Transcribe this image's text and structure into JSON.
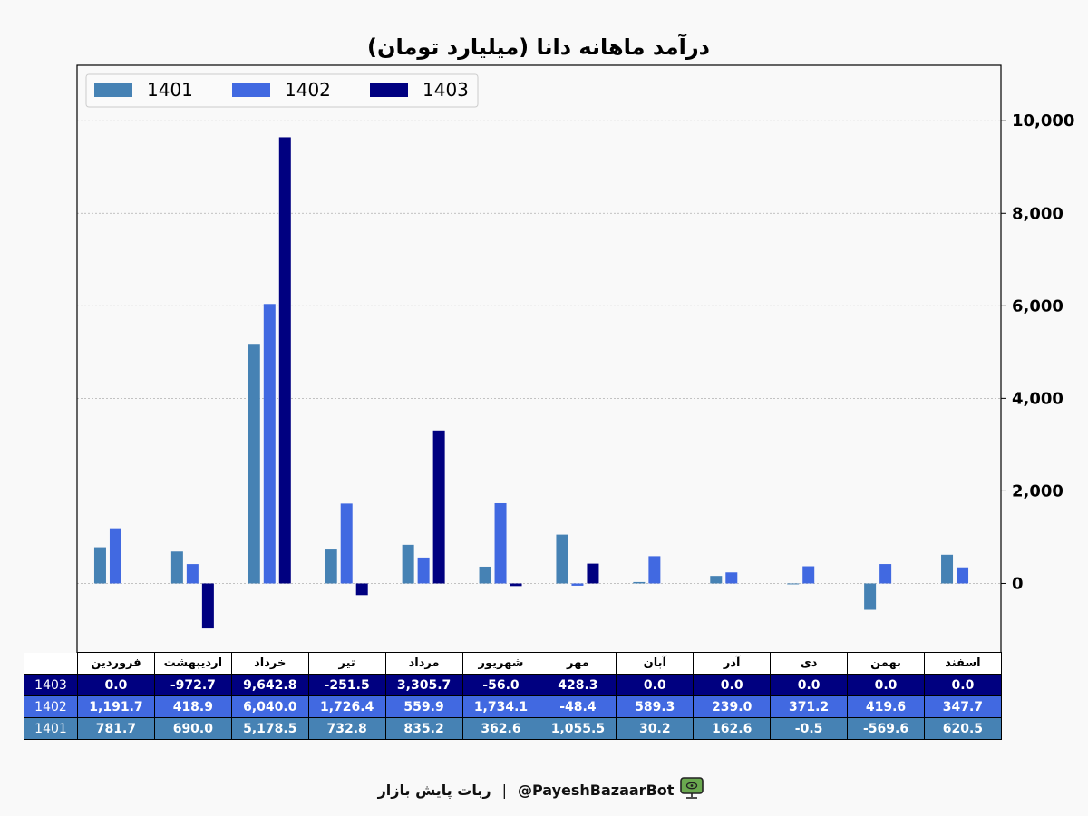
{
  "chart_data": {
    "type": "bar",
    "title": "درآمد ماهانه دانا (میلیارد تومان)",
    "categories": [
      "فروردین",
      "اردیبهشت",
      "خرداد",
      "تیر",
      "مرداد",
      "شهریور",
      "مهر",
      "آبان",
      "آذر",
      "دی",
      "بهمن",
      "اسفند"
    ],
    "series": [
      {
        "name": "1401",
        "color": "#4682b4",
        "values": [
          781.7,
          690.0,
          5178.5,
          732.8,
          835.2,
          362.6,
          1055.5,
          30.2,
          162.6,
          -0.5,
          -569.6,
          620.5
        ],
        "labels": [
          "781.7",
          "690.0",
          "5,178.5",
          "732.8",
          "835.2",
          "362.6",
          "1,055.5",
          "30.2",
          "162.6",
          "-0.5",
          "-569.6",
          "620.5"
        ]
      },
      {
        "name": "1402",
        "color": "#4169e1",
        "values": [
          1191.7,
          418.9,
          6040.0,
          1726.4,
          559.9,
          1734.1,
          -48.4,
          589.3,
          239.0,
          371.2,
          419.6,
          347.7
        ],
        "labels": [
          "1,191.7",
          "418.9",
          "6,040.0",
          "1,726.4",
          "559.9",
          "1,734.1",
          "-48.4",
          "589.3",
          "239.0",
          "371.2",
          "419.6",
          "347.7"
        ]
      },
      {
        "name": "1403",
        "color": "#000080",
        "values": [
          0.0,
          -972.7,
          9642.8,
          -251.5,
          3305.7,
          -56.0,
          428.3,
          0.0,
          0.0,
          0.0,
          0.0,
          0.0
        ],
        "labels": [
          "0.0",
          "-972.7",
          "9,642.8",
          "-251.5",
          "3,305.7",
          "-56.0",
          "428.3",
          "0.0",
          "0.0",
          "0.0",
          "0.0",
          "0.0"
        ]
      }
    ],
    "ylim": [
      -1500,
      11200
    ],
    "yticks": [
      0,
      2000,
      4000,
      6000,
      8000,
      10000
    ],
    "ytick_labels": [
      "0",
      "2,000",
      "4,000",
      "6,000",
      "8,000",
      "10,000"
    ],
    "yaxis_side": "right",
    "grid": true,
    "legend": "top-left",
    "table_row_order": [
      "1403",
      "1402",
      "1401"
    ]
  },
  "footer": {
    "text": "ربات پایش بازار",
    "separator": "|",
    "handle": "@PayeshBazaarBot",
    "icon": "monitor-icon",
    "icon_color": "#6aa84f"
  }
}
